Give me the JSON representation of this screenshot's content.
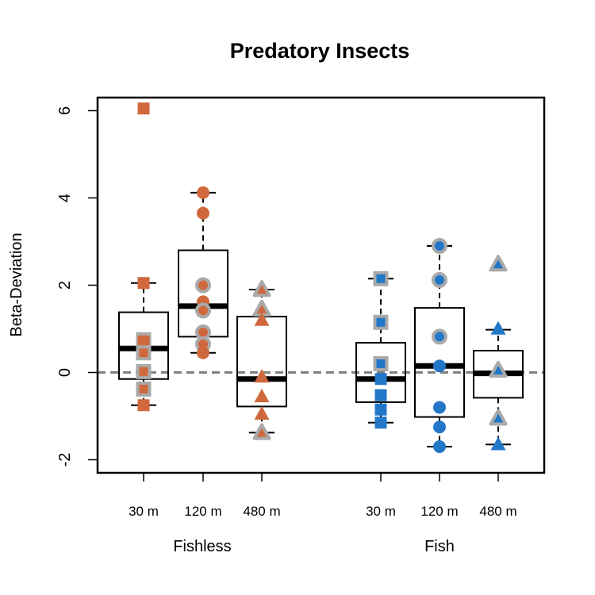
{
  "chart_data": {
    "type": "box",
    "title": "Predatory Insects",
    "ylabel": "Beta-Deviation",
    "ylim": [
      -2.3,
      6.3
    ],
    "yticks": [
      -2,
      0,
      2,
      4,
      6
    ],
    "yticklabels": [
      "-2",
      "0",
      "2",
      "4",
      "6"
    ],
    "reference_line": 0,
    "groups": [
      "Fishless",
      "Fish"
    ],
    "categories": [
      "30 m",
      "120 m",
      "480 m",
      "30 m",
      "120 m",
      "480 m"
    ],
    "group_colors": {
      "Fishless": "#D0683D",
      "Fish": "#2277C8"
    },
    "outline_color": "#A9A9A9",
    "boxes": [
      {
        "group": "Fishless",
        "category": "30 m",
        "shape": "square",
        "whisker_low": -0.75,
        "q1": -0.15,
        "median": 0.55,
        "q3": 1.38,
        "whisker_high": 2.05,
        "points": [
          {
            "y": 6.05,
            "outlined": false
          },
          {
            "y": 2.05,
            "outlined": false
          },
          {
            "y": 0.75,
            "outlined": true
          },
          {
            "y": 0.7,
            "outlined": false
          },
          {
            "y": 0.45,
            "outlined": true
          },
          {
            "y": 0.02,
            "outlined": true
          },
          {
            "y": -0.38,
            "outlined": true
          },
          {
            "y": -0.75,
            "outlined": false
          }
        ]
      },
      {
        "group": "Fishless",
        "category": "120 m",
        "shape": "circle",
        "whisker_low": 0.45,
        "q1": 0.82,
        "median": 1.52,
        "q3": 2.8,
        "whisker_high": 4.12,
        "points": [
          {
            "y": 4.12,
            "outlined": false
          },
          {
            "y": 3.65,
            "outlined": false
          },
          {
            "y": 2.0,
            "outlined": true
          },
          {
            "y": 1.62,
            "outlined": false
          },
          {
            "y": 1.42,
            "outlined": true
          },
          {
            "y": 0.92,
            "outlined": true
          },
          {
            "y": 0.65,
            "outlined": true
          },
          {
            "y": 0.45,
            "outlined": false
          }
        ]
      },
      {
        "group": "Fishless",
        "category": "480 m",
        "shape": "triangle",
        "whisker_low": -1.38,
        "q1": -0.78,
        "median": -0.15,
        "q3": 1.28,
        "whisker_high": 1.9,
        "points": [
          {
            "y": 1.9,
            "outlined": true
          },
          {
            "y": 1.45,
            "outlined": true
          },
          {
            "y": 1.2,
            "outlined": false
          },
          {
            "y": -0.1,
            "outlined": false
          },
          {
            "y": -0.55,
            "outlined": false
          },
          {
            "y": -0.95,
            "outlined": false
          },
          {
            "y": -1.38,
            "outlined": true
          }
        ]
      },
      {
        "group": "Fish",
        "category": "30 m",
        "shape": "square",
        "whisker_low": -1.15,
        "q1": -0.68,
        "median": -0.15,
        "q3": 0.68,
        "whisker_high": 2.15,
        "points": [
          {
            "y": 2.15,
            "outlined": true
          },
          {
            "y": 1.15,
            "outlined": true
          },
          {
            "y": 0.2,
            "outlined": true
          },
          {
            "y": -0.15,
            "outlined": false
          },
          {
            "y": -0.52,
            "outlined": false
          },
          {
            "y": -0.85,
            "outlined": false
          },
          {
            "y": -1.15,
            "outlined": false
          }
        ]
      },
      {
        "group": "Fish",
        "category": "120 m",
        "shape": "circle",
        "whisker_low": -1.7,
        "q1": -1.02,
        "median": 0.15,
        "q3": 1.48,
        "whisker_high": 2.9,
        "points": [
          {
            "y": 2.9,
            "outlined": true
          },
          {
            "y": 2.12,
            "outlined": true
          },
          {
            "y": 0.82,
            "outlined": true
          },
          {
            "y": 0.15,
            "outlined": false
          },
          {
            "y": -0.8,
            "outlined": false
          },
          {
            "y": -1.25,
            "outlined": false
          },
          {
            "y": -1.7,
            "outlined": false
          }
        ]
      },
      {
        "group": "Fish",
        "category": "480 m",
        "shape": "triangle",
        "whisker_low": -1.65,
        "q1": -0.58,
        "median": -0.02,
        "q3": 0.5,
        "whisker_high": 0.98,
        "points": [
          {
            "y": 2.48,
            "outlined": true
          },
          {
            "y": 1.0,
            "outlined": false
          },
          {
            "y": 0.05,
            "outlined": true
          },
          {
            "y": -1.05,
            "outlined": true
          },
          {
            "y": -1.65,
            "outlined": false
          }
        ]
      }
    ]
  }
}
